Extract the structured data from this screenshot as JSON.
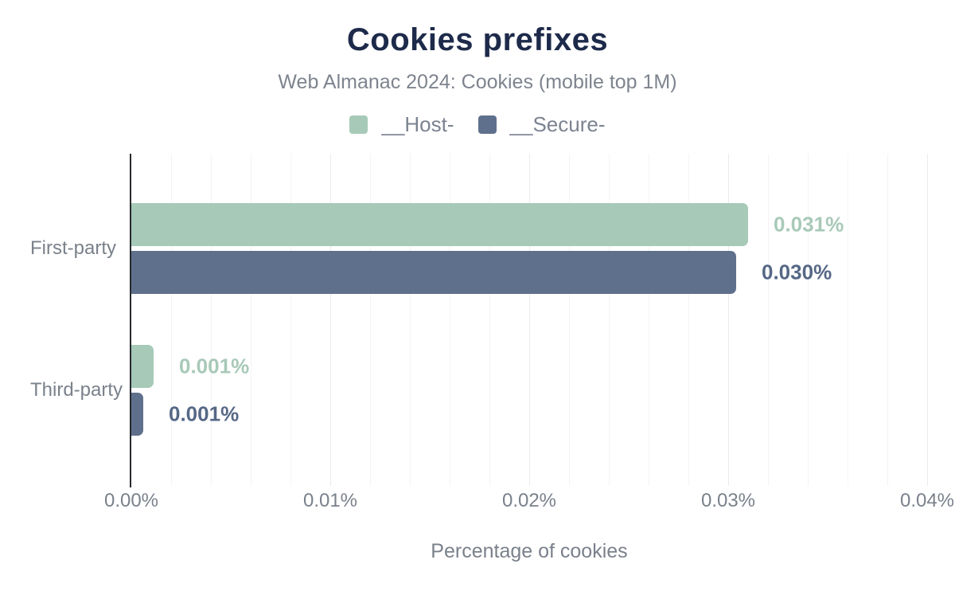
{
  "chart_data": {
    "type": "bar",
    "orientation": "horizontal",
    "title": "Cookies prefixes",
    "subtitle": "Web Almanac 2024: Cookies (mobile top 1M)",
    "xlabel": "Percentage of cookies",
    "categories": [
      "First-party",
      "Third-party"
    ],
    "series": [
      {
        "name": "__Host-",
        "color": "#a7cab8",
        "label_color": "#a8c9b8",
        "values": [
          0.031,
          0.0011
        ],
        "labels": [
          "0.031%",
          "0.001%"
        ]
      },
      {
        "name": "__Secure-",
        "color": "#5f708c",
        "label_color": "#566886",
        "values": [
          0.0304,
          0.0006
        ],
        "labels": [
          "0.030%",
          "0.001%"
        ]
      }
    ],
    "xlim": [
      0,
      0.04
    ],
    "xticks": [
      {
        "value": 0.0,
        "label": "0.00%"
      },
      {
        "value": 0.01,
        "label": "0.01%"
      },
      {
        "value": 0.02,
        "label": "0.02%"
      },
      {
        "value": 0.03,
        "label": "0.03%"
      },
      {
        "value": 0.04,
        "label": "0.04%"
      }
    ],
    "grid": {
      "show": true,
      "minor_step": 0.002,
      "major_step": 0.01
    },
    "legend_position": "top"
  },
  "colors": {
    "title": "#1d2a4a",
    "subtitle": "#7e848e",
    "axis_text": "#7a818b",
    "legend_text": "#7b8290",
    "axis_line": "#27292e",
    "grid_minor": "#f3f4f5",
    "grid_major": "#e9ebed",
    "background": "#ffffff"
  }
}
